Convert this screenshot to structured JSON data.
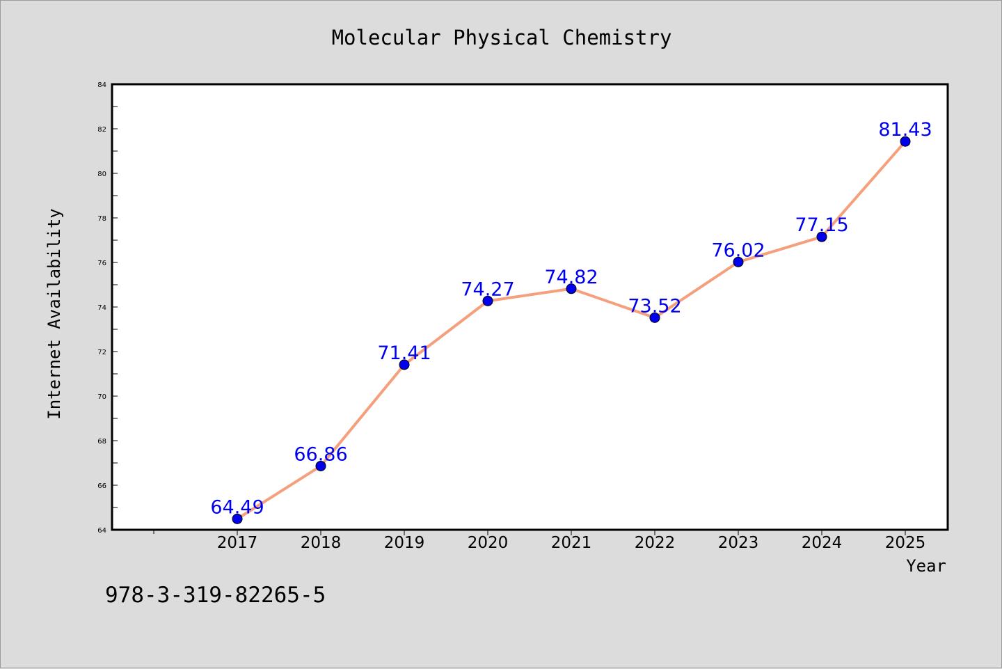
{
  "chart_data": {
    "type": "line",
    "title": "Molecular Physical Chemistry",
    "xlabel": "Year",
    "ylabel": "Internet Availability",
    "x": [
      "2017",
      "2018",
      "2019",
      "2020",
      "2021",
      "2022",
      "2023",
      "2024",
      "2025"
    ],
    "series": [
      {
        "values": [
          64.49,
          66.86,
          71.41,
          74.27,
          74.82,
          73.52,
          76.02,
          77.15,
          81.43
        ],
        "data_labels": [
          "64.49",
          "66.86",
          "71.41",
          "74.27",
          "74.82",
          "73.52",
          "76.02",
          "77.15",
          "81.43"
        ]
      }
    ],
    "ylim": [
      64,
      84
    ],
    "yticks": [
      "64",
      "66",
      "68",
      "70",
      "72",
      "74",
      "76",
      "78",
      "80",
      "82",
      "84"
    ],
    "grid": false,
    "line_color": "#f4a07c",
    "marker_color": "#0000ee",
    "label_color": "#0000ee"
  },
  "footer": {
    "isbn": "978-3-319-82265-5"
  }
}
